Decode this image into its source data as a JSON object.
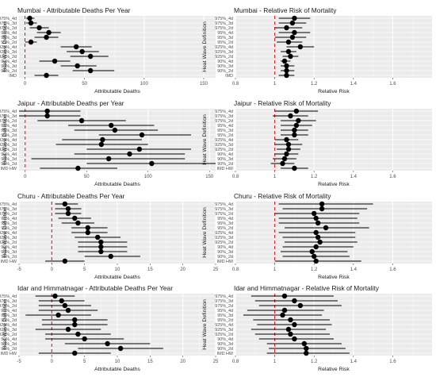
{
  "figure": {
    "y_axis_title": "Heat Wave Definition"
  },
  "chart_data": [
    {
      "type": "scatter",
      "title": "Mumbai - Attributable Deaths Per Year",
      "xlabel": "Attributable Deaths",
      "xlim": [
        -5,
        160
      ],
      "xticks": [
        0,
        50,
        100,
        150
      ],
      "ref_line": 0,
      "categories": [
        "IMD",
        "90%_2d",
        "90%_3d",
        "90%_4d",
        "925%_2d",
        "925%_3d",
        "925%_4d",
        "95%_2d",
        "95%_3d",
        "95%_4d",
        "975%_2d",
        "975%_3d",
        "975%_4d"
      ],
      "tick_labels": [
        "IMD",
        "90%_2d",
        "90%_3d",
        "90%_4d",
        "925%_2d",
        "925%_3d",
        "925%_4d",
        "95%_2d",
        "95%_3d",
        "95%_4d",
        "975%_2d",
        "975%_3d",
        "975%_4d"
      ],
      "values": [
        18,
        55,
        44,
        25,
        55,
        48,
        43,
        5,
        18,
        20,
        12,
        5,
        4
      ],
      "lower": [
        8,
        40,
        30,
        12,
        38,
        35,
        30,
        0,
        8,
        10,
        4,
        1,
        1
      ],
      "upper": [
        28,
        75,
        60,
        38,
        70,
        62,
        56,
        10,
        28,
        30,
        20,
        10,
        8
      ]
    },
    {
      "type": "scatter",
      "title": "Mumbai - Relative Risk of Mortality",
      "xlabel": "Relative Risk",
      "xlim": [
        0.8,
        1.8
      ],
      "xticks": [
        0.8,
        1.0,
        1.2,
        1.4,
        1.6
      ],
      "ref_line": 1.0,
      "categories": [
        "IMD",
        "90%_2d",
        "90%_3d",
        "90%_4d",
        "925%_2d",
        "925%_3d",
        "925%_4d",
        "95%_2d",
        "95%_3d",
        "95%_4d",
        "975%_2d",
        "975%_3d",
        "975%_4d"
      ],
      "tick_labels": [
        "IMD",
        "90%_2d",
        "90%_3d",
        "90%_4d",
        "925%_2d",
        "925%_3d",
        "925%_4d",
        "95%_2d",
        "95%_3d",
        "95%_4d",
        "975%_2d",
        "975%_3d",
        "975%_4d"
      ],
      "values": [
        1.06,
        1.06,
        1.06,
        1.05,
        1.08,
        1.07,
        1.13,
        1.07,
        1.09,
        1.1,
        1.06,
        1.09,
        1.1
      ],
      "lower": [
        1.02,
        1.03,
        1.03,
        1.03,
        1.04,
        1.03,
        1.06,
        1.01,
        1.0,
        1.02,
        1.0,
        1.02,
        1.02
      ],
      "upper": [
        1.1,
        1.1,
        1.1,
        1.08,
        1.12,
        1.11,
        1.2,
        1.14,
        1.16,
        1.18,
        1.14,
        1.16,
        1.18
      ]
    },
    {
      "type": "scatter",
      "title": "Jaipur - Attributable Deaths per Year",
      "xlabel": "Attributable Deaths",
      "xlim": [
        -5,
        155
      ],
      "xticks": [
        0,
        50,
        100,
        150
      ],
      "ref_line": 0,
      "categories": [
        "IMD HW",
        "90%_2d",
        "90%_3d",
        "90%_4d",
        "925%_2d",
        "925%_3d",
        "925%_4d",
        "95%_2d",
        "95%_3d",
        "95%_4d",
        "975%_2d",
        "975%_3d",
        "975%_4d"
      ],
      "tick_labels": [
        "IMD HW",
        "90%_2d",
        "90%_3d",
        "90%_4d",
        "925%_2d",
        "925%_3d",
        "925%_4d",
        "95%_2d",
        "95%_3d",
        "95%_4d",
        "975%_2d",
        "975%_3d",
        "975%_4d"
      ],
      "values": [
        43,
        103,
        68,
        85,
        93,
        62,
        63,
        95,
        73,
        70,
        46,
        18,
        18
      ],
      "lower": [
        12,
        50,
        5,
        40,
        50,
        25,
        30,
        60,
        40,
        35,
        10,
        -5,
        -5
      ],
      "upper": [
        75,
        155,
        130,
        130,
        135,
        100,
        95,
        135,
        108,
        105,
        82,
        45,
        45
      ]
    },
    {
      "type": "scatter",
      "title": "Jaipur - Relative Risk of Mortality",
      "xlabel": "Relative Risk",
      "xlim": [
        0.8,
        1.8
      ],
      "xticks": [
        0.8,
        1.0,
        1.2,
        1.4,
        1.6
      ],
      "ref_line": 1.0,
      "categories": [
        "IMD HW",
        "90%_2d",
        "90%_3d",
        "90%_4d",
        "925%_2d",
        "925%_3d",
        "925%_4d",
        "95%_2d",
        "95%_3d",
        "95%_4d",
        "975%_2d",
        "975%_3d",
        "975%_4d"
      ],
      "tick_labels": [
        "IMD HW",
        "90%_2d",
        "90%_3d",
        "90%_4d",
        "925%_2d",
        "925%_3d",
        "925%_4d",
        "95%_2d",
        "95%_3d",
        "95%_4d",
        "975%_2d",
        "975%_3d",
        "975%_4d"
      ],
      "values": [
        1.1,
        1.04,
        1.05,
        1.06,
        1.07,
        1.07,
        1.06,
        1.1,
        1.1,
        1.11,
        1.12,
        1.08,
        1.11
      ],
      "lower": [
        1.03,
        0.98,
        0.99,
        1.0,
        1.01,
        1.0,
        1.0,
        1.03,
        1.03,
        1.03,
        1.03,
        0.99,
        1.0
      ],
      "upper": [
        1.17,
        1.1,
        1.11,
        1.12,
        1.13,
        1.14,
        1.12,
        1.17,
        1.17,
        1.19,
        1.21,
        1.17,
        1.22
      ]
    },
    {
      "type": "scatter",
      "title": "Churu - Attributable Deaths Per Year",
      "xlabel": "Attributable Deaths",
      "xlim": [
        -5,
        25
      ],
      "xticks": [
        -5,
        0,
        5,
        10,
        15,
        20,
        25
      ],
      "ref_line": 0,
      "categories": [
        "IMD HW",
        "90%_2d",
        "90%_3d",
        "90%_4d",
        "925%_2d",
        "925%_3d",
        "925%_4d",
        "95%_2d",
        "95%_3d",
        "95%_4d",
        "975%_2d",
        "975%_3d",
        "975%_4d"
      ],
      "tick_labels": [
        "IMD HW",
        "90%_2d",
        "90%_3d",
        "90%_4d",
        "925%_2d",
        "925%_3d",
        "925%_4d",
        "95%_2d",
        "95%_3d",
        "95%_4d",
        "975%_2d",
        "975%_3d",
        "975%_4d"
      ],
      "values": [
        2.0,
        9.0,
        7.5,
        7.5,
        7.5,
        7.0,
        5.5,
        5.5,
        4.0,
        3.5,
        2.5,
        2.5,
        2.0
      ],
      "lower": [
        -1.0,
        5.0,
        4.0,
        4.0,
        4.0,
        3.5,
        3.0,
        3.0,
        1.5,
        1.0,
        0.5,
        0.5,
        0.5
      ],
      "upper": [
        5.0,
        13.5,
        11.5,
        11.5,
        11.5,
        10.5,
        8.5,
        8.5,
        6.5,
        6.0,
        4.5,
        4.5,
        4.0
      ]
    },
    {
      "type": "scatter",
      "title": "Churu - Relative Risk of Mortality",
      "xlabel": "Relative Risk",
      "xlim": [
        0.8,
        1.8
      ],
      "xticks": [
        0.8,
        1.0,
        1.2,
        1.4,
        1.6
      ],
      "ref_line": 1.0,
      "categories": [
        "IMD HW",
        "90%_2d",
        "90%_3d",
        "90%_4d",
        "925%_2d",
        "925%_3d",
        "925%_4d",
        "95%_2d",
        "95%_3d",
        "95%_4d",
        "975%_2d",
        "975%_3d",
        "975%_4d"
      ],
      "tick_labels": [
        "IMD HW",
        "90%_2d",
        "90%_3d",
        "90%_4d",
        "925%_2d",
        "925%_3d",
        "925%_4d",
        "95%_2d",
        "95%_3d",
        "95%_4d",
        "975%_2d",
        "975%_3d",
        "975%_4d"
      ],
      "values": [
        1.21,
        1.2,
        1.19,
        1.21,
        1.23,
        1.22,
        1.21,
        1.26,
        1.22,
        1.21,
        1.2,
        1.24,
        1.24
      ],
      "lower": [
        1.0,
        1.04,
        1.03,
        1.04,
        1.05,
        1.04,
        1.02,
        1.05,
        1.02,
        1.02,
        1.0,
        1.04,
        1.02
      ],
      "upper": [
        1.44,
        1.38,
        1.37,
        1.4,
        1.42,
        1.41,
        1.41,
        1.48,
        1.43,
        1.42,
        1.43,
        1.47,
        1.5
      ]
    },
    {
      "type": "scatter",
      "title": "Idar and Himmatnagar - Attributable Deaths Per Year",
      "xlabel": "Attributable Deaths",
      "xlim": [
        -5,
        25
      ],
      "xticks": [
        -5,
        0,
        5,
        10,
        15,
        20,
        25
      ],
      "ref_line": 0,
      "categories": [
        "IMD HW",
        "90%_2d",
        "90%_3d",
        "90%_4d",
        "925%_2d",
        "925%_3d",
        "925%_4d",
        "95%_2d",
        "95%_3d",
        "95%_4d",
        "975%_2d",
        "975%_3d",
        "975%_4d"
      ],
      "tick_labels": [
        "IMD HW",
        "90%_2d",
        "90%_3d",
        "90%_4d",
        "925%_2d",
        "925%_3d",
        "925%_4d",
        "95%_2d",
        "95%_3d",
        "95%_4d",
        "975%_2d",
        "975%_3d",
        "975%_4d"
      ],
      "values": [
        3.5,
        10.5,
        8.5,
        5.0,
        4.0,
        2.5,
        3.5,
        3.5,
        1.0,
        2.5,
        2.0,
        1.5,
        0.5
      ],
      "lower": [
        -2.0,
        4.0,
        2.0,
        -1.0,
        -1.0,
        -2.5,
        -1.5,
        -1.5,
        -4.0,
        -2.0,
        -2.0,
        -2.0,
        -2.5
      ],
      "upper": [
        9.0,
        17.0,
        15.0,
        11.0,
        9.0,
        7.5,
        8.5,
        8.5,
        6.0,
        7.0,
        6.0,
        5.0,
        3.5
      ]
    },
    {
      "type": "scatter",
      "title": "Idar and Himmatnagar - Relative Risk of Mortality",
      "xlabel": "Relative Risk",
      "xlim": [
        0.8,
        1.8
      ],
      "xticks": [
        0.8,
        1.0,
        1.2,
        1.4,
        1.6
      ],
      "ref_line": 1.0,
      "categories": [
        "IMD HW",
        "90%_2d",
        "90%_3d",
        "90%_4d",
        "925%_2d",
        "925%_3d",
        "925%_4d",
        "95%_2d",
        "95%_3d",
        "95%_4d",
        "975%_2d",
        "975%_3d",
        "975%_4d"
      ],
      "tick_labels": [
        "IMD HW",
        "90%_2d",
        "90%_3d",
        "90%_4d",
        "925%_2d",
        "925%_3d",
        "925%_4d",
        "95%_2d",
        "95%_3d",
        "95%_4d",
        "975%_2d",
        "975%_3d",
        "975%_4d"
      ],
      "values": [
        1.16,
        1.16,
        1.15,
        1.1,
        1.08,
        1.07,
        1.1,
        1.08,
        1.04,
        1.05,
        1.13,
        1.1,
        1.05
      ],
      "lower": [
        0.96,
        0.97,
        0.96,
        0.92,
        0.9,
        0.88,
        0.91,
        0.89,
        0.84,
        0.86,
        0.92,
        0.9,
        0.88
      ],
      "upper": [
        1.38,
        1.36,
        1.34,
        1.3,
        1.28,
        1.26,
        1.29,
        1.28,
        1.24,
        1.25,
        1.34,
        1.32,
        1.3
      ]
    }
  ]
}
